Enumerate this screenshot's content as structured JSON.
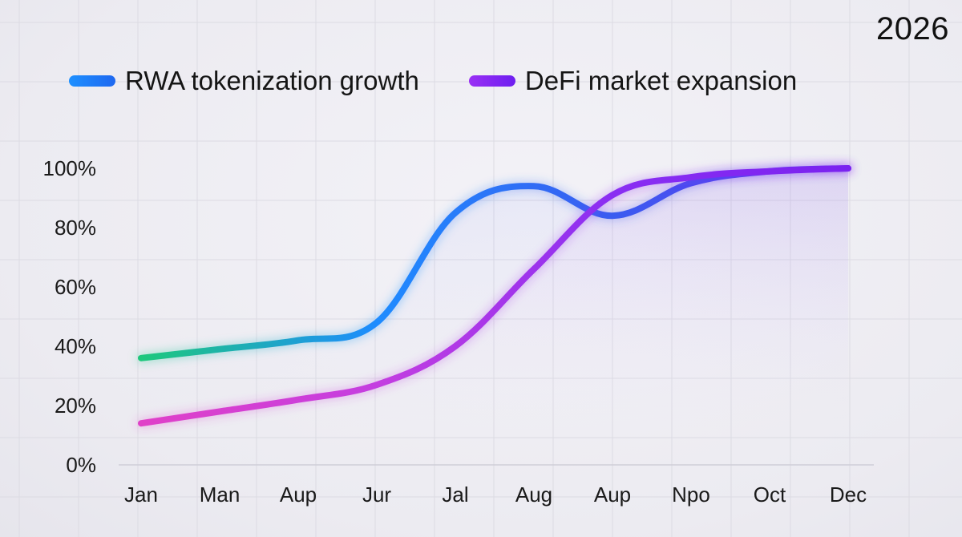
{
  "year": "2026",
  "legend": [
    {
      "label": "RWA tokenization growth",
      "color": "#1e78ff"
    },
    {
      "label": "DeFi market expansion",
      "color": "#7a22f0"
    }
  ],
  "chart_data": {
    "type": "line",
    "title": "",
    "xlabel": "",
    "ylabel": "",
    "categories": [
      "Jan",
      "Man",
      "Aup",
      "Jur",
      "Jal",
      "Aug",
      "Aup",
      "Npo",
      "Oct",
      "Dec"
    ],
    "y_ticks": [
      "100%",
      "80%",
      "60%",
      "40%",
      "20%",
      "0%"
    ],
    "y_tick_values": [
      100,
      80,
      60,
      40,
      20,
      0
    ],
    "ylim": [
      0,
      100
    ],
    "grid": true,
    "series": [
      {
        "name": "RWA tokenization growth",
        "values": [
          36,
          39,
          42,
          48,
          85,
          94,
          84,
          95,
          99,
          100
        ],
        "gradient": [
          "#1ec87c",
          "#1e8cff",
          "#3a5cf0",
          "#6a2ef0"
        ]
      },
      {
        "name": "DeFi market expansion",
        "values": [
          14,
          18,
          22,
          27,
          40,
          66,
          91,
          97,
          99,
          100
        ],
        "gradient": [
          "#e040c8",
          "#c43ee0",
          "#8a2ef2",
          "#7a22f0"
        ]
      }
    ]
  }
}
